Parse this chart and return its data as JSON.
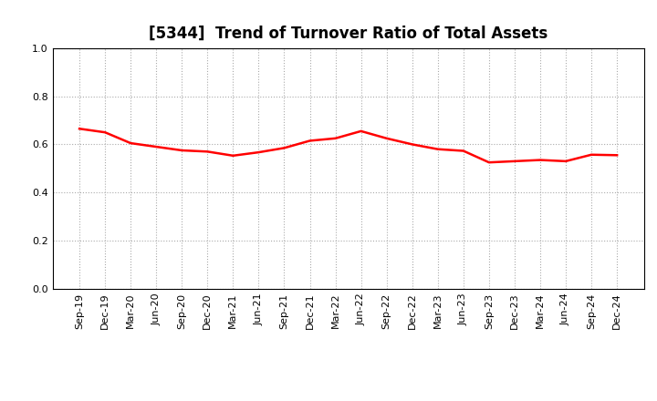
{
  "title": "[5344]  Trend of Turnover Ratio of Total Assets",
  "x_labels": [
    "Sep-19",
    "Dec-19",
    "Mar-20",
    "Jun-20",
    "Sep-20",
    "Dec-20",
    "Mar-21",
    "Jun-21",
    "Sep-21",
    "Dec-21",
    "Mar-22",
    "Jun-22",
    "Sep-22",
    "Dec-22",
    "Mar-23",
    "Jun-23",
    "Sep-23",
    "Dec-23",
    "Mar-24",
    "Jun-24",
    "Sep-24",
    "Dec-24"
  ],
  "y_values": [
    0.665,
    0.65,
    0.605,
    0.59,
    0.575,
    0.57,
    0.553,
    0.567,
    0.585,
    0.615,
    0.625,
    0.655,
    0.625,
    0.6,
    0.58,
    0.573,
    0.525,
    0.53,
    0.535,
    0.53,
    0.557,
    0.555
  ],
  "line_color": "#ff0000",
  "line_width": 1.8,
  "ylim": [
    0.0,
    1.0
  ],
  "yticks": [
    0.0,
    0.2,
    0.4,
    0.6,
    0.8,
    1.0
  ],
  "grid_color": "#aaaaaa",
  "background_color": "#ffffff",
  "title_fontsize": 12,
  "tick_fontsize": 8
}
